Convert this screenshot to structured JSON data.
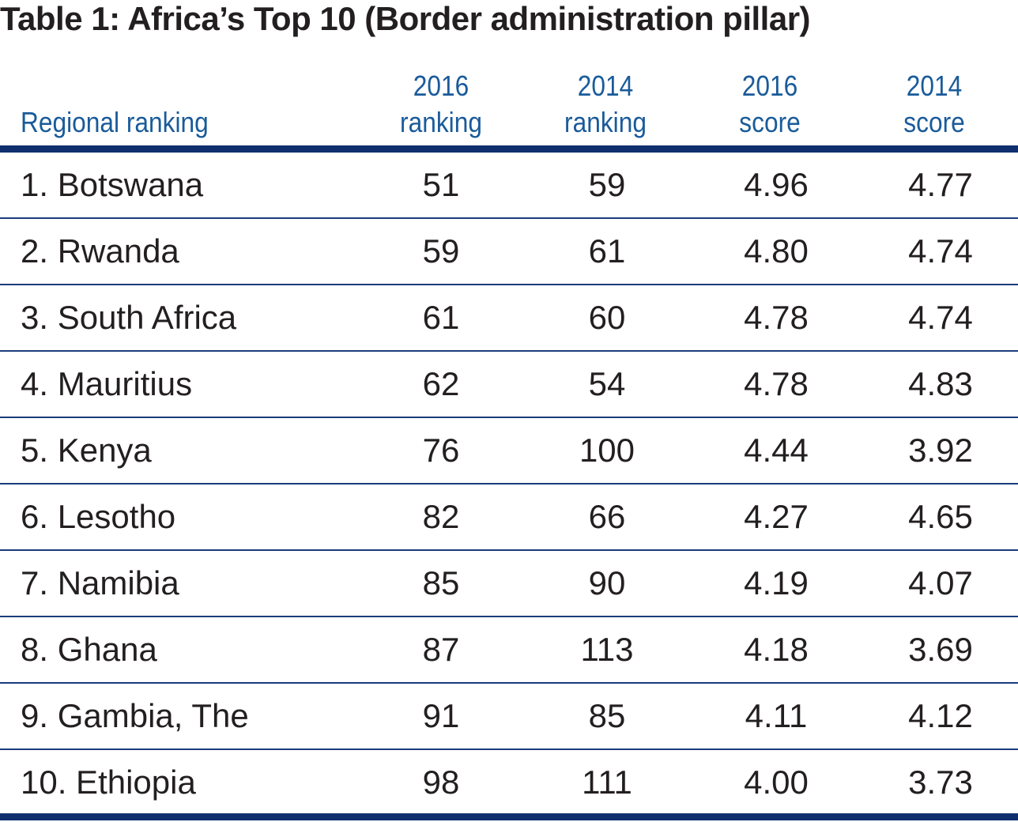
{
  "chart_data": {
    "type": "table",
    "title": "Table 1: Africa’s Top 10 (Border administration pillar)",
    "columns": [
      {
        "line1": "",
        "line2": "Regional ranking"
      },
      {
        "line1": "2016",
        "line2": "ranking"
      },
      {
        "line1": "2014",
        "line2": "ranking"
      },
      {
        "line1": "2016",
        "line2": "score"
      },
      {
        "line1": "2014",
        "line2": "score"
      }
    ],
    "rows": [
      {
        "name": "1. Botswana",
        "rank2016": "51",
        "rank2014": "59",
        "score2016": "4.96",
        "score2014": "4.77"
      },
      {
        "name": "2. Rwanda",
        "rank2016": "59",
        "rank2014": "61",
        "score2016": "4.80",
        "score2014": "4.74"
      },
      {
        "name": "3. South Africa",
        "rank2016": "61",
        "rank2014": "60",
        "score2016": "4.78",
        "score2014": "4.74"
      },
      {
        "name": "4. Mauritius",
        "rank2016": "62",
        "rank2014": "54",
        "score2016": "4.78",
        "score2014": "4.83"
      },
      {
        "name": "5. Kenya",
        "rank2016": "76",
        "rank2014": "100",
        "score2016": "4.44",
        "score2014": "3.92"
      },
      {
        "name": "6. Lesotho",
        "rank2016": "82",
        "rank2014": "66",
        "score2016": "4.27",
        "score2014": "4.65"
      },
      {
        "name": "7. Namibia",
        "rank2016": "85",
        "rank2014": "90",
        "score2016": "4.19",
        "score2014": "4.07"
      },
      {
        "name": "8. Ghana",
        "rank2016": "87",
        "rank2014": "113",
        "score2016": "4.18",
        "score2014": "3.69"
      },
      {
        "name": "9. Gambia, The",
        "rank2016": "91",
        "rank2014": "85",
        "score2016": "4.11",
        "score2014": "4.12"
      },
      {
        "name": "10. Ethiopia",
        "rank2016": "98",
        "rank2014": "111",
        "score2016": "4.00",
        "score2014": "3.73"
      }
    ],
    "colors": {
      "header_text": "#1a5b9a",
      "rule": "#0f2f6e",
      "body_text": "#231f20"
    }
  }
}
